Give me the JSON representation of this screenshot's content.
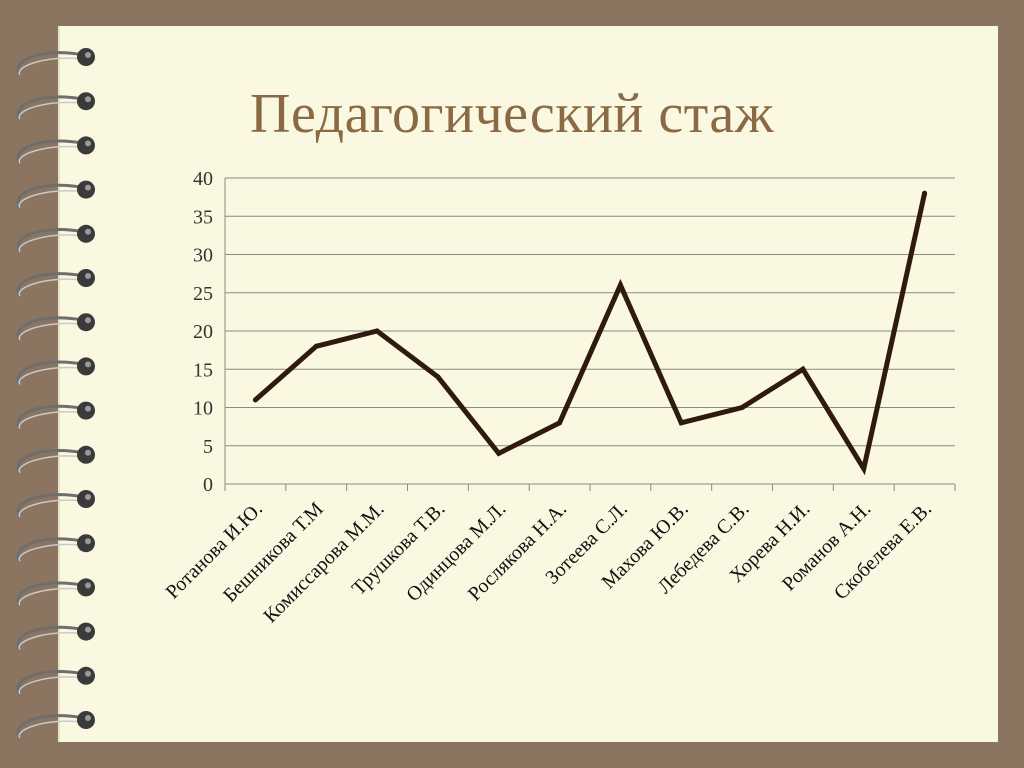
{
  "slide": {
    "title": "Педагогический стаж",
    "background_color": "#8b7560",
    "paper_color": "#fbf8e1",
    "title_color": "#8a6a45",
    "decoration": "spiral-binding-rings"
  },
  "chart_data": {
    "type": "line",
    "title": "Педагогический стаж",
    "xlabel": "",
    "ylabel": "",
    "categories": [
      "Ротанова И.Ю.",
      "Бешникова Т.М",
      "Комиссарова М.М.",
      "Трушкова Т.В.",
      "Одинцова М.Л.",
      "Рослякова Н.А.",
      "Зотеева С.Л.",
      "Махова Ю.В.",
      "Лебедева С.В.",
      "Хорева Н.И.",
      "Романов А.Н.",
      "Скобелева Е.В."
    ],
    "series": [
      {
        "values": [
          11,
          18,
          20,
          14,
          4,
          8,
          26,
          8,
          10,
          15,
          2,
          38
        ],
        "color": "#2e1a0e"
      }
    ],
    "ylim": [
      0,
      40
    ],
    "yticks": [
      "0",
      "5",
      "10",
      "15",
      "20",
      "25",
      "30",
      "35",
      "40"
    ],
    "grid": true,
    "legend": "none"
  }
}
